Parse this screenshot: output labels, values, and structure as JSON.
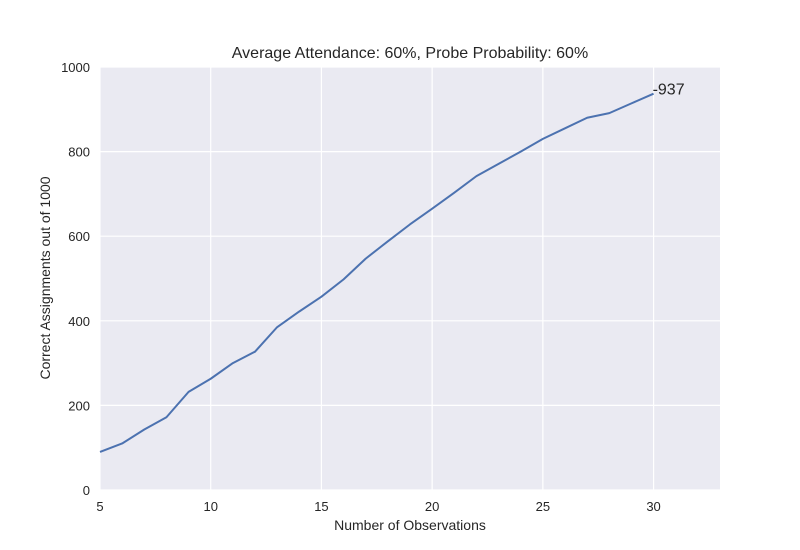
{
  "chart_data": {
    "type": "line",
    "title": "Average Attendance: 60%, Probe Probability: 60%",
    "xlabel": "Number of Observations",
    "ylabel": "Correct Assignments out of 1000",
    "xlim": [
      5,
      33
    ],
    "ylim": [
      0,
      1000
    ],
    "xticks": [
      5,
      10,
      15,
      20,
      25,
      30
    ],
    "yticks": [
      0,
      200,
      400,
      600,
      800,
      1000
    ],
    "grid": true,
    "background": "#eaeaf2",
    "grid_color": "#ffffff",
    "line_color": "#4c72b0",
    "series": [
      {
        "x": [
          5,
          6,
          7,
          8,
          9,
          10,
          11,
          12,
          13,
          14,
          15,
          16,
          17,
          18,
          19,
          20,
          21,
          22,
          23,
          24,
          25,
          26,
          27,
          28,
          29,
          30
        ],
        "values": [
          90,
          110,
          143,
          172,
          232,
          263,
          300,
          327,
          385,
          422,
          457,
          498,
          547,
          588,
          628,
          665,
          703,
          742,
          771,
          800,
          830,
          855,
          880,
          891,
          914,
          937
        ]
      }
    ],
    "end_annotation": "-937"
  }
}
